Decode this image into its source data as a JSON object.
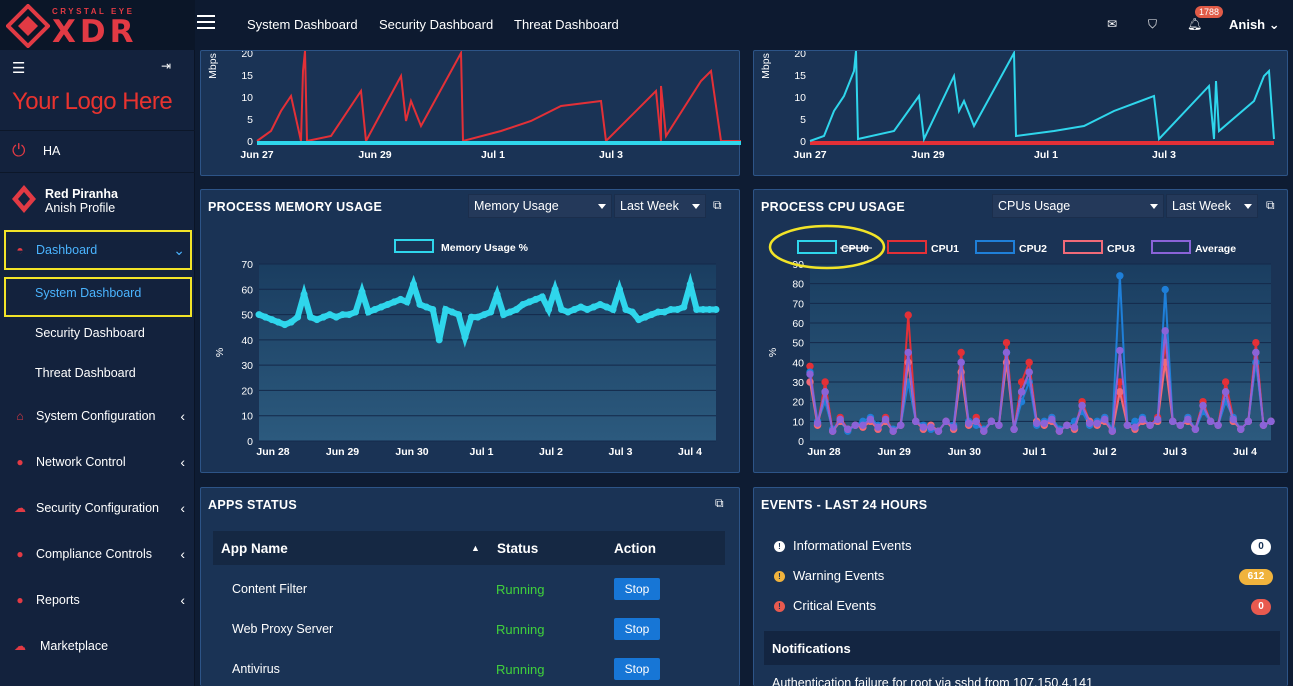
{
  "brand": {
    "tagline": "CRYSTAL EYE",
    "product": "XDR"
  },
  "sidebar": {
    "logo_text": "Your Logo Here",
    "ha_label": "HA",
    "profile": {
      "name": "Red Piranha",
      "subtitle": "Anish Profile"
    },
    "items": [
      {
        "label": "Dashboard",
        "icon": "dashboard-icon"
      },
      {
        "label": "System Configuration",
        "icon": "home-icon"
      },
      {
        "label": "Network Control",
        "icon": "globe-icon"
      },
      {
        "label": "Security Configuration",
        "icon": "cloud-icon"
      },
      {
        "label": "Compliance Controls",
        "icon": "globe-icon"
      },
      {
        "label": "Reports",
        "icon": "globe-icon"
      },
      {
        "label": "Marketplace",
        "icon": "cloud-icon"
      }
    ],
    "subitems": [
      "System Dashboard",
      "Security Dashboard",
      "Threat Dashboard"
    ]
  },
  "topbar": {
    "tabs": [
      "System Dashboard",
      "Security Dashboard",
      "Threat Dashboard"
    ],
    "notification_count": "1788",
    "user": "Anish"
  },
  "net_charts": {
    "ylabel": "Mbps",
    "yticks": [
      "20",
      "15",
      "10",
      "5",
      "0"
    ],
    "xticks": [
      "Jun 27",
      "Jun 29",
      "Jul 1",
      "Jul 3"
    ]
  },
  "memory_panel": {
    "title": "PROCESS MEMORY USAGE",
    "select_metric": "Memory Usage",
    "select_range": "Last Week",
    "legend": "Memory Usage %"
  },
  "cpu_panel": {
    "title": "PROCESS CPU USAGE",
    "select_metric": "CPUs Usage",
    "select_range": "Last Week",
    "legend": [
      "CPU0",
      "CPU1",
      "CPU2",
      "CPU3",
      "Average"
    ]
  },
  "chart_data": [
    {
      "type": "line",
      "title": "PROCESS MEMORY USAGE",
      "ylabel": "%",
      "ylim": [
        0,
        70
      ],
      "yticks": [
        0,
        10,
        20,
        30,
        40,
        50,
        60,
        70
      ],
      "x_ticks": [
        "Jun 28",
        "Jun 29",
        "Jun 30",
        "Jul 1",
        "Jul 2",
        "Jul 3",
        "Jul 4"
      ],
      "series": [
        {
          "name": "Memory Usage %",
          "color": "#2fd6ec",
          "values": [
            50,
            49,
            48,
            47,
            46,
            47,
            49,
            58,
            49,
            48,
            49,
            50,
            49,
            50,
            50,
            51,
            59,
            51,
            52,
            53,
            54,
            55,
            56,
            55,
            62,
            54,
            53,
            52,
            40,
            52,
            51,
            50,
            41,
            49,
            49,
            50,
            51,
            58,
            50,
            51,
            52,
            54,
            55,
            56,
            57,
            52,
            60,
            52,
            51,
            52,
            53,
            52,
            53,
            54,
            53,
            52,
            60,
            52,
            51,
            48,
            49,
            50,
            51,
            51,
            52,
            52,
            53,
            62,
            52,
            52,
            52,
            52
          ]
        }
      ]
    },
    {
      "type": "line",
      "title": "PROCESS CPU USAGE",
      "ylabel": "%",
      "ylim": [
        0,
        90
      ],
      "yticks": [
        0,
        10,
        20,
        30,
        40,
        50,
        60,
        70,
        80,
        90
      ],
      "x_ticks": [
        "Jun 28",
        "Jun 29",
        "Jun 30",
        "Jul 1",
        "Jul 2",
        "Jul 3",
        "Jul 4"
      ],
      "series": [
        {
          "name": "CPU0",
          "color": "#2fd6ec",
          "hidden": true,
          "values": []
        },
        {
          "name": "CPU1",
          "color": "#e33037",
          "values": [
            38,
            8,
            30,
            5,
            12,
            6,
            8,
            7,
            10,
            6,
            12,
            5,
            8,
            64,
            10,
            6,
            8,
            5,
            10,
            6,
            45,
            8,
            12,
            5,
            10,
            8,
            50,
            6,
            30,
            40,
            10,
            8,
            12,
            5,
            8,
            6,
            20,
            10,
            8,
            12,
            5,
            30,
            8,
            6,
            10,
            8,
            12,
            50,
            10,
            8,
            12,
            6,
            20,
            10,
            8,
            30,
            12,
            6,
            10,
            50,
            8,
            10
          ]
        },
        {
          "name": "CPU2",
          "color": "#1f7fd8",
          "values": [
            35,
            10,
            20,
            6,
            10,
            5,
            8,
            10,
            12,
            8,
            10,
            6,
            8,
            30,
            10,
            8,
            6,
            5,
            10,
            8,
            40,
            10,
            8,
            6,
            10,
            8,
            45,
            6,
            20,
            30,
            8,
            10,
            12,
            6,
            8,
            10,
            15,
            8,
            10,
            12,
            6,
            84,
            8,
            10,
            12,
            8,
            10,
            77,
            10,
            8,
            12,
            6,
            15,
            10,
            8,
            20,
            12,
            6,
            10,
            40,
            8,
            10
          ]
        },
        {
          "name": "CPU3",
          "color": "#f06a78",
          "values": [
            30,
            8,
            25,
            5,
            10,
            6,
            8,
            7,
            10,
            6,
            10,
            5,
            8,
            40,
            10,
            6,
            8,
            5,
            10,
            6,
            35,
            8,
            10,
            5,
            10,
            8,
            40,
            6,
            25,
            35,
            10,
            8,
            10,
            5,
            8,
            6,
            18,
            10,
            8,
            10,
            5,
            25,
            8,
            6,
            10,
            8,
            10,
            40,
            10,
            8,
            10,
            6,
            18,
            10,
            8,
            25,
            10,
            6,
            10,
            45,
            8,
            10
          ]
        },
        {
          "name": "Average",
          "color": "#8a63d8",
          "values": [
            34,
            9,
            25,
            5,
            11,
            6,
            8,
            8,
            11,
            7,
            11,
            5,
            8,
            45,
            10,
            7,
            7,
            5,
            10,
            7,
            40,
            9,
            10,
            5,
            10,
            8,
            45,
            6,
            25,
            35,
            9,
            9,
            11,
            5,
            8,
            7,
            18,
            9,
            9,
            11,
            5,
            46,
            8,
            7,
            11,
            8,
            11,
            56,
            10,
            8,
            11,
            6,
            18,
            10,
            8,
            25,
            11,
            6,
            10,
            45,
            8,
            10
          ]
        }
      ]
    }
  ],
  "apps_panel": {
    "title": "APPS STATUS",
    "columns": [
      "App Name",
      "Status",
      "Action"
    ],
    "rows": [
      {
        "name": "Content Filter",
        "status": "Running",
        "action": "Stop"
      },
      {
        "name": "Web Proxy Server",
        "status": "Running",
        "action": "Stop"
      },
      {
        "name": "Antivirus",
        "status": "Running",
        "action": "Stop"
      }
    ]
  },
  "events_panel": {
    "title": "EVENTS - LAST 24 HOURS",
    "events": [
      {
        "label": "Informational Events",
        "count": "0",
        "color": "#ffffff"
      },
      {
        "label": "Warning Events",
        "count": "612",
        "color": "#f0b33d"
      },
      {
        "label": "Critical Events",
        "count": "0",
        "color": "#e85a4f"
      }
    ],
    "notifications_title": "Notifications",
    "notification_text": "Authentication failure for root via sshd from 107.150.4.141"
  }
}
